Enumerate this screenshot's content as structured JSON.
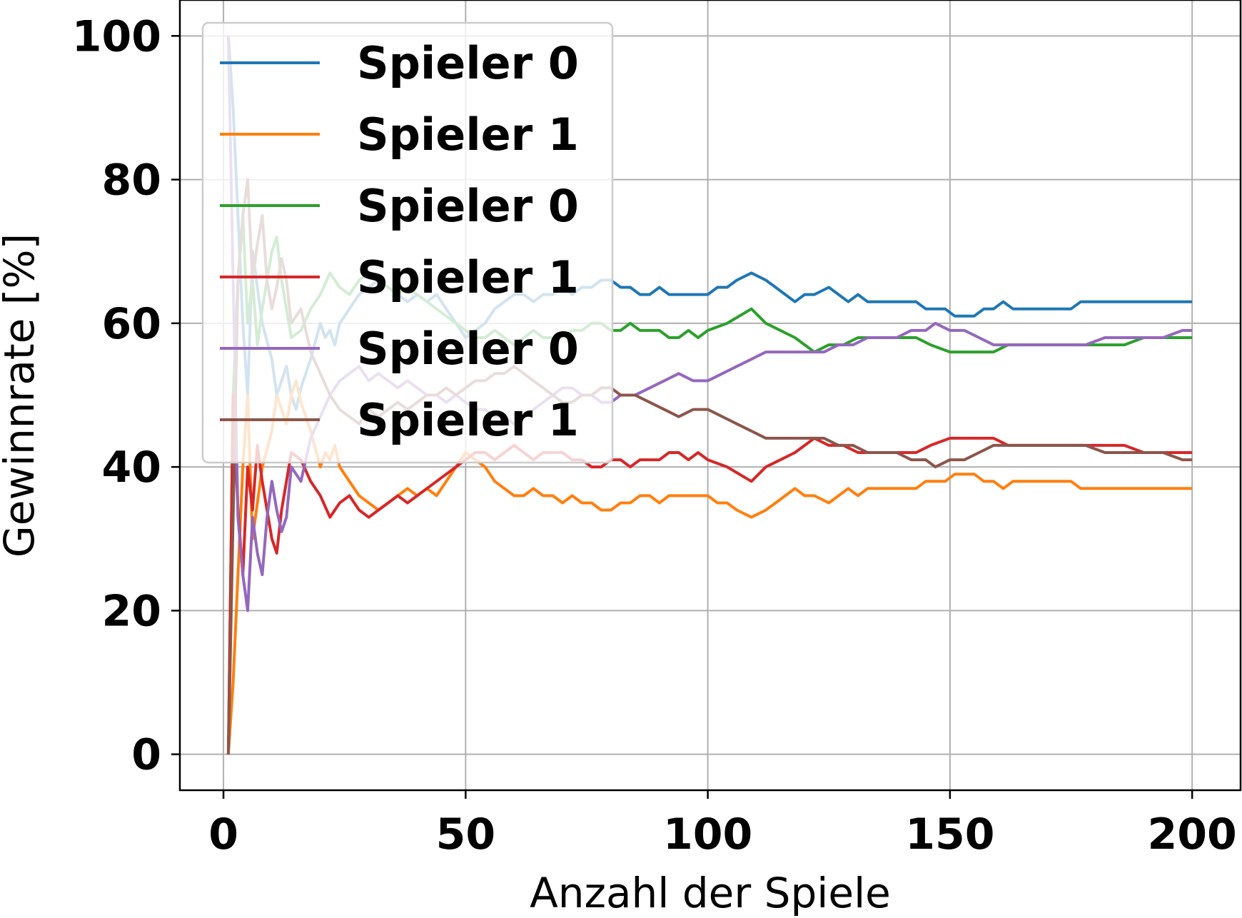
{
  "chart_data": {
    "type": "line",
    "xlabel": "Anzahl der Spiele",
    "ylabel": "Gewinnrate [%]",
    "xlim": [
      -9,
      210
    ],
    "ylim": [
      -5,
      105
    ],
    "xticks": [
      0,
      50,
      100,
      150,
      200
    ],
    "yticks": [
      0,
      20,
      40,
      60,
      80,
      100
    ],
    "grid": true,
    "legend_position": "upper-left",
    "series": [
      {
        "name": "Spieler 0",
        "color": "#1f77b4",
        "x": [
          1,
          2,
          4,
          5,
          6,
          7,
          8,
          10,
          11,
          13,
          14,
          15,
          16,
          18,
          20,
          21,
          22,
          23,
          24,
          26,
          28,
          30,
          32,
          34,
          36,
          38,
          40,
          42,
          44,
          46,
          48,
          50,
          52,
          54,
          56,
          58,
          60,
          62,
          64,
          66,
          68,
          70,
          72,
          74,
          76,
          78,
          80,
          82,
          84,
          86,
          88,
          90,
          92,
          94,
          96,
          98,
          100,
          102,
          104,
          106,
          109,
          112,
          114,
          116,
          118,
          120,
          122,
          125,
          127,
          129,
          131,
          133,
          135,
          137,
          139,
          141,
          143,
          145,
          147,
          149,
          151,
          153,
          155,
          157,
          159,
          161,
          163,
          165,
          167,
          169,
          171,
          173,
          175,
          177,
          179,
          181,
          183,
          185,
          187,
          189,
          191,
          193,
          195,
          197,
          199,
          200
        ],
        "y": [
          100,
          90,
          60,
          50,
          70,
          65,
          60,
          55,
          50,
          54,
          50,
          48,
          51,
          55,
          60,
          58,
          59,
          57,
          60,
          62,
          64,
          65,
          66,
          65,
          64,
          63,
          64,
          63,
          64,
          62,
          60,
          58,
          59,
          60,
          62,
          63,
          64,
          64,
          63,
          64,
          64,
          65,
          64,
          65,
          65,
          66,
          66,
          65,
          65,
          64,
          64,
          65,
          64,
          64,
          64,
          64,
          64,
          65,
          65,
          66,
          67,
          66,
          65,
          64,
          63,
          64,
          64,
          65,
          64,
          63,
          64,
          63,
          63,
          63,
          63,
          63,
          63,
          62,
          62,
          62,
          61,
          61,
          61,
          62,
          62,
          63,
          62,
          62,
          62,
          62,
          62,
          62,
          62,
          63,
          63,
          63,
          63,
          63,
          63,
          63,
          63,
          63,
          63,
          63,
          63,
          63
        ]
      },
      {
        "name": "Spieler 1",
        "color": "#ff7f0e",
        "x": [
          1,
          2,
          4,
          5,
          6,
          7,
          8,
          10,
          11,
          13,
          14,
          15,
          16,
          18,
          20,
          21,
          22,
          23,
          24,
          26,
          28,
          30,
          32,
          34,
          36,
          38,
          40,
          42,
          44,
          46,
          48,
          50,
          52,
          54,
          56,
          58,
          60,
          62,
          64,
          66,
          68,
          70,
          72,
          74,
          76,
          78,
          80,
          82,
          84,
          86,
          88,
          90,
          92,
          94,
          96,
          98,
          100,
          102,
          104,
          106,
          109,
          112,
          114,
          116,
          118,
          120,
          122,
          125,
          127,
          129,
          131,
          133,
          135,
          137,
          139,
          141,
          143,
          145,
          147,
          149,
          151,
          153,
          155,
          157,
          159,
          161,
          163,
          165,
          167,
          169,
          171,
          173,
          175,
          177,
          179,
          181,
          183,
          185,
          187,
          189,
          191,
          193,
          195,
          197,
          199,
          200
        ],
        "y": [
          0,
          10,
          40,
          50,
          30,
          35,
          40,
          45,
          50,
          46,
          50,
          52,
          49,
          45,
          40,
          42,
          41,
          43,
          40,
          38,
          36,
          35,
          34,
          35,
          36,
          37,
          36,
          37,
          36,
          38,
          40,
          42,
          41,
          40,
          38,
          37,
          36,
          36,
          37,
          36,
          36,
          35,
          36,
          35,
          35,
          34,
          34,
          35,
          35,
          36,
          36,
          35,
          36,
          36,
          36,
          36,
          36,
          35,
          35,
          34,
          33,
          34,
          35,
          36,
          37,
          36,
          36,
          35,
          36,
          37,
          36,
          37,
          37,
          37,
          37,
          37,
          37,
          38,
          38,
          38,
          39,
          39,
          39,
          38,
          38,
          37,
          38,
          38,
          38,
          38,
          38,
          38,
          38,
          37,
          37,
          37,
          37,
          37,
          37,
          37,
          37,
          37,
          37,
          37,
          37,
          37
        ]
      },
      {
        "name": "Spieler 0",
        "color": "#2ca02c",
        "x": [
          1,
          2,
          3,
          4,
          5,
          6,
          7,
          8,
          9,
          10,
          11,
          12,
          13,
          14,
          16,
          18,
          20,
          22,
          24,
          26,
          28,
          30,
          32,
          34,
          36,
          38,
          40,
          42,
          44,
          46,
          48,
          50,
          52,
          54,
          56,
          58,
          60,
          62,
          64,
          66,
          68,
          70,
          72,
          74,
          76,
          78,
          80,
          82,
          84,
          86,
          88,
          90,
          92,
          94,
          96,
          98,
          100,
          104,
          109,
          112,
          115,
          118,
          122,
          125,
          128,
          131,
          134,
          137,
          140,
          143,
          146,
          150,
          153,
          156,
          159,
          162,
          166,
          170,
          174,
          178,
          182,
          186,
          190,
          194,
          198,
          200
        ],
        "y": [
          0,
          50,
          66,
          75,
          60,
          66,
          57,
          62,
          66,
          70,
          72,
          66,
          62,
          58,
          59,
          62,
          64,
          67,
          65,
          64,
          66,
          67,
          66,
          65,
          64,
          65,
          64,
          63,
          62,
          61,
          60,
          59,
          58,
          58,
          59,
          58,
          57,
          58,
          59,
          58,
          58,
          58,
          59,
          59,
          60,
          60,
          59,
          59,
          60,
          59,
          59,
          59,
          58,
          58,
          59,
          58,
          59,
          60,
          62,
          60,
          59,
          58,
          56,
          57,
          57,
          58,
          58,
          58,
          58,
          58,
          57,
          56,
          56,
          56,
          56,
          57,
          57,
          57,
          57,
          57,
          57,
          57,
          58,
          58,
          58,
          58
        ]
      },
      {
        "name": "Spieler 1",
        "color": "#d62728",
        "x": [
          1,
          2,
          3,
          4,
          5,
          6,
          7,
          8,
          9,
          10,
          11,
          12,
          13,
          14,
          16,
          18,
          20,
          22,
          24,
          26,
          28,
          30,
          32,
          34,
          36,
          38,
          40,
          42,
          44,
          46,
          48,
          50,
          52,
          54,
          56,
          58,
          60,
          62,
          64,
          66,
          68,
          70,
          72,
          74,
          76,
          78,
          80,
          82,
          84,
          86,
          88,
          90,
          92,
          94,
          96,
          98,
          100,
          104,
          109,
          112,
          115,
          118,
          122,
          125,
          128,
          131,
          134,
          137,
          140,
          143,
          146,
          150,
          153,
          156,
          159,
          162,
          166,
          170,
          174,
          178,
          182,
          186,
          190,
          194,
          198,
          200
        ],
        "y": [
          0,
          50,
          34,
          25,
          40,
          34,
          43,
          38,
          34,
          30,
          28,
          34,
          38,
          42,
          41,
          38,
          36,
          33,
          35,
          36,
          34,
          33,
          34,
          35,
          36,
          35,
          36,
          37,
          38,
          39,
          40,
          41,
          42,
          42,
          41,
          42,
          43,
          42,
          41,
          42,
          42,
          42,
          41,
          41,
          40,
          40,
          41,
          41,
          40,
          41,
          41,
          41,
          42,
          42,
          41,
          42,
          41,
          40,
          38,
          40,
          41,
          42,
          44,
          43,
          43,
          42,
          42,
          42,
          42,
          42,
          43,
          44,
          44,
          44,
          44,
          43,
          43,
          43,
          43,
          43,
          43,
          43,
          42,
          42,
          42,
          42
        ]
      },
      {
        "name": "Spieler 0",
        "color": "#9467bd",
        "x": [
          1,
          2,
          3,
          4,
          5,
          6,
          7,
          8,
          9,
          10,
          11,
          12,
          13,
          14,
          16,
          18,
          20,
          22,
          24,
          26,
          28,
          30,
          32,
          34,
          36,
          38,
          40,
          42,
          44,
          46,
          48,
          50,
          52,
          54,
          56,
          58,
          60,
          62,
          64,
          66,
          68,
          70,
          72,
          74,
          76,
          78,
          80,
          82,
          85,
          88,
          91,
          94,
          97,
          100,
          103,
          106,
          109,
          112,
          115,
          118,
          121,
          124,
          127,
          130,
          133,
          136,
          139,
          142,
          145,
          147,
          150,
          153,
          156,
          159,
          162,
          166,
          170,
          174,
          178,
          182,
          186,
          190,
          194,
          198,
          200
        ],
        "y": [
          100,
          66,
          33,
          25,
          20,
          33,
          28,
          25,
          33,
          38,
          34,
          31,
          33,
          40,
          38,
          44,
          47,
          50,
          52,
          53,
          54,
          52,
          53,
          52,
          51,
          52,
          51,
          50,
          50,
          49,
          50,
          49,
          48,
          48,
          47,
          47,
          46,
          47,
          48,
          49,
          50,
          51,
          51,
          50,
          50,
          49,
          49,
          50,
          50,
          51,
          52,
          53,
          52,
          52,
          53,
          54,
          55,
          56,
          56,
          56,
          56,
          56,
          57,
          57,
          58,
          58,
          58,
          59,
          59,
          60,
          59,
          59,
          58,
          57,
          57,
          57,
          57,
          57,
          57,
          58,
          58,
          58,
          58,
          59,
          59
        ]
      },
      {
        "name": "Spieler 1",
        "color": "#8c564b",
        "x": [
          1,
          2,
          3,
          4,
          5,
          6,
          7,
          8,
          9,
          10,
          11,
          12,
          13,
          14,
          16,
          18,
          20,
          22,
          24,
          26,
          28,
          30,
          32,
          34,
          36,
          38,
          40,
          42,
          44,
          46,
          48,
          50,
          52,
          54,
          56,
          58,
          60,
          62,
          64,
          66,
          68,
          70,
          72,
          74,
          76,
          78,
          80,
          82,
          85,
          88,
          91,
          94,
          97,
          100,
          103,
          106,
          109,
          112,
          115,
          118,
          121,
          124,
          127,
          130,
          133,
          136,
          139,
          142,
          145,
          147,
          150,
          153,
          156,
          159,
          162,
          166,
          170,
          174,
          178,
          182,
          186,
          190,
          194,
          198,
          200
        ],
        "y": [
          0,
          33,
          66,
          75,
          80,
          66,
          71,
          75,
          66,
          62,
          65,
          69,
          66,
          60,
          62,
          56,
          53,
          50,
          48,
          47,
          46,
          48,
          47,
          48,
          49,
          48,
          49,
          50,
          50,
          51,
          50,
          51,
          52,
          52,
          53,
          53,
          54,
          53,
          52,
          51,
          50,
          49,
          49,
          50,
          50,
          51,
          51,
          50,
          50,
          49,
          48,
          47,
          48,
          48,
          47,
          46,
          45,
          44,
          44,
          44,
          44,
          44,
          43,
          43,
          42,
          42,
          42,
          41,
          41,
          40,
          41,
          41,
          42,
          43,
          43,
          43,
          43,
          43,
          43,
          42,
          42,
          42,
          42,
          41,
          41
        ]
      }
    ]
  }
}
